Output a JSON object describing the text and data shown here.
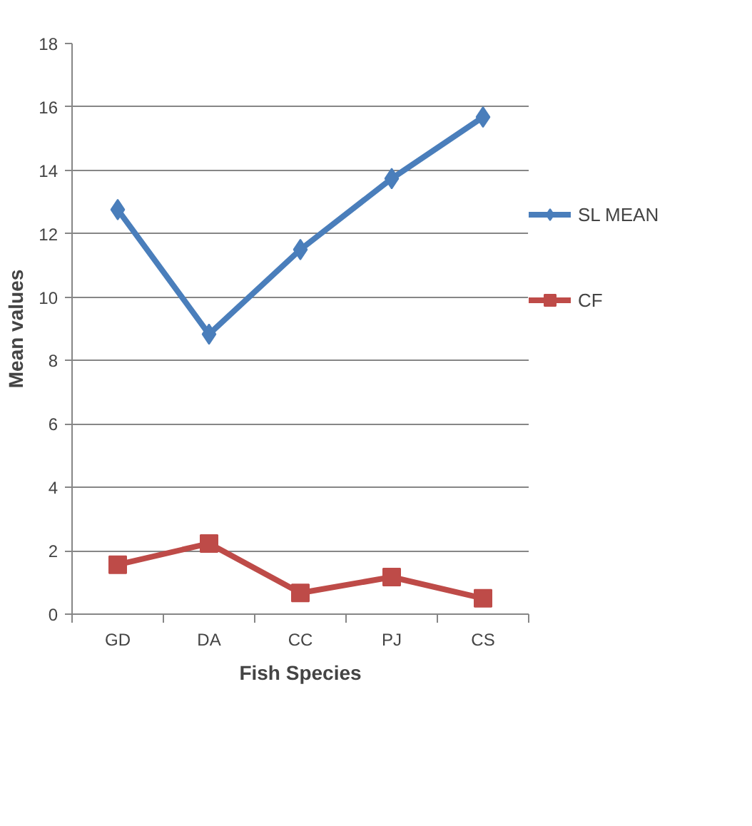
{
  "chart_data": {
    "type": "line",
    "xlabel": "Fish Species",
    "ylabel": "Mean values",
    "categories": [
      "GD",
      "DA",
      "CC",
      "PJ",
      "CS"
    ],
    "series": [
      {
        "name": "SL MEAN",
        "color": "#4a7ebb",
        "marker": "diamond",
        "values": [
          12.76,
          8.83,
          11.5,
          13.74,
          15.68
        ]
      },
      {
        "name": "CF",
        "color": "#be4b48",
        "marker": "square",
        "values": [
          1.56,
          2.23,
          0.67,
          1.17,
          0.5
        ]
      }
    ],
    "ylim": [
      0,
      18
    ],
    "yticks": [
      0,
      2,
      4,
      6,
      8,
      10,
      12,
      14,
      16,
      18
    ],
    "grid": "y",
    "legend": "right",
    "line_style": "solid"
  }
}
